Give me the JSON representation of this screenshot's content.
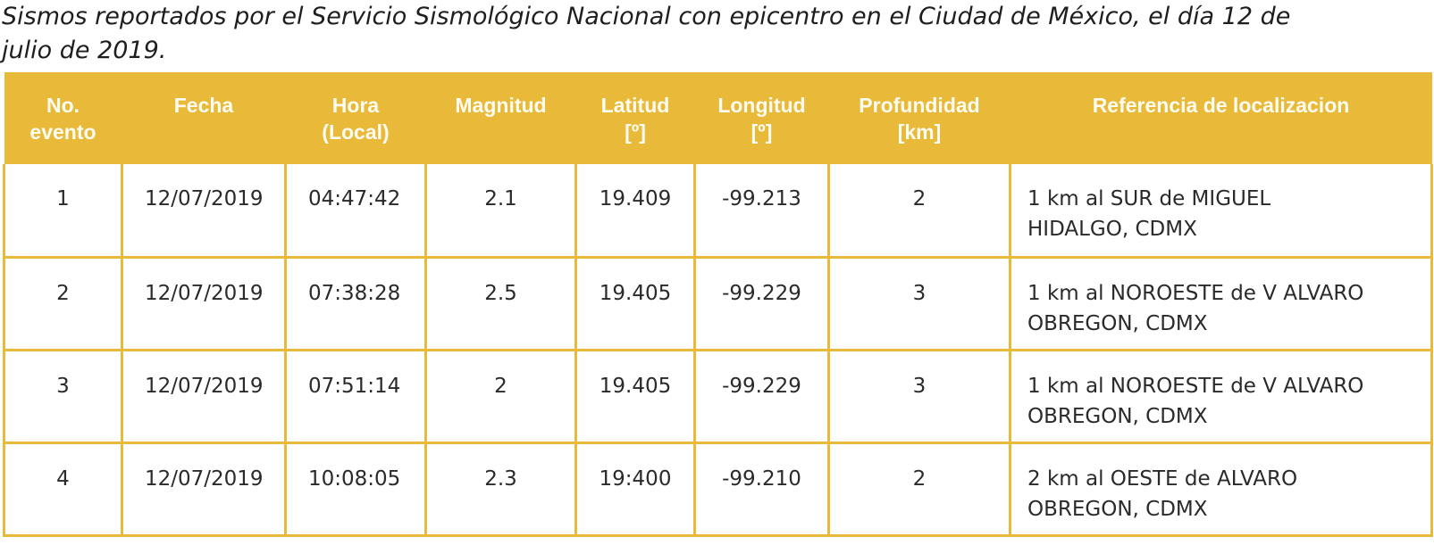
{
  "caption": {
    "line1": "Sismos reportados por el Servicio Sismológico Nacional con epicentro en el Ciudad de México, el día 12 de",
    "line2": "julio de 2019."
  },
  "table": {
    "headers": [
      {
        "line1": "No.",
        "line2": "evento"
      },
      {
        "line1": "Fecha",
        "line2": ""
      },
      {
        "line1": "Hora",
        "line2": "(Local)"
      },
      {
        "line1": "Magnitud",
        "line2": ""
      },
      {
        "line1": "Latitud",
        "line2": "[º]"
      },
      {
        "line1": "Longitud",
        "line2": "[º]"
      },
      {
        "line1": "Profundidad",
        "line2": "[km]"
      },
      {
        "line1": "Referencia de localizacion",
        "line2": ""
      }
    ],
    "rows": [
      {
        "no": "1",
        "fecha": "12/07/2019",
        "hora": "04:47:42",
        "magnitud": "2.1",
        "latitud": "19.409",
        "longitud": "-99.213",
        "profundidad": "2",
        "ref_line1": "1 km al SUR de MIGUEL",
        "ref_line2": "HIDALGO, CDMX"
      },
      {
        "no": "2",
        "fecha": "12/07/2019",
        "hora": "07:38:28",
        "magnitud": "2.5",
        "latitud": "19.405",
        "longitud": "-99.229",
        "profundidad": "3",
        "ref_line1": "1 km al NOROESTE de V ALVARO",
        "ref_line2": "OBREGON, CDMX"
      },
      {
        "no": "3",
        "fecha": "12/07/2019",
        "hora": "07:51:14",
        "magnitud": "2",
        "latitud": "19.405",
        "longitud": "-99.229",
        "profundidad": "3",
        "ref_line1": "1 km al NOROESTE de V ALVARO",
        "ref_line2": "OBREGON, CDMX"
      },
      {
        "no": "4",
        "fecha": "12/07/2019",
        "hora": "10:08:05",
        "magnitud": "2.3",
        "latitud": "19:400",
        "longitud": "-99.210",
        "profundidad": "2",
        "ref_line1": "2 km al OESTE de ALVARO",
        "ref_line2": "OBREGON, CDMX"
      }
    ]
  },
  "colors": {
    "header_bg": "#e9b93a",
    "header_text": "#fffdf2",
    "grid": "#e9b93a"
  }
}
